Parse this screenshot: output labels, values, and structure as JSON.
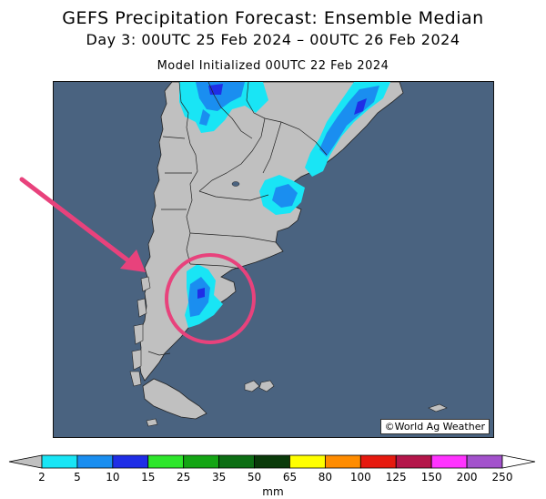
{
  "title": {
    "line1": "GEFS Precipitation Forecast: Ensemble Median",
    "line2": "Day 3: 00UTC 25 Feb 2024 – 00UTC 26 Feb 2024",
    "line3": "Model Initialized 00UTC 22 Feb 2024"
  },
  "copyright": "©World Ag Weather",
  "colors": {
    "ocean": "#4a6380",
    "land": "#c0c0c0",
    "annotation": "#e8427c"
  },
  "legend": {
    "unit": "mm",
    "ticks": [
      "2",
      "5",
      "10",
      "15",
      "25",
      "35",
      "50",
      "65",
      "80",
      "100",
      "125",
      "150",
      "200",
      "250"
    ],
    "bins": [
      {
        "from": "2",
        "to": "5",
        "color": "#19e5f5"
      },
      {
        "from": "5",
        "to": "10",
        "color": "#1a8ef0"
      },
      {
        "from": "10",
        "to": "15",
        "color": "#1f2ee6"
      },
      {
        "from": "15",
        "to": "25",
        "color": "#2ee62b"
      },
      {
        "from": "25",
        "to": "35",
        "color": "#14a514"
      },
      {
        "from": "35",
        "to": "50",
        "color": "#0d6e14"
      },
      {
        "from": "50",
        "to": "65",
        "color": "#0a3a0a"
      },
      {
        "from": "65",
        "to": "80",
        "color": "#ffff00"
      },
      {
        "from": "80",
        "to": "100",
        "color": "#ff8c00"
      },
      {
        "from": "100",
        "to": "125",
        "color": "#e61a0f"
      },
      {
        "from": "125",
        "to": "150",
        "color": "#b4164a"
      },
      {
        "from": "150",
        "to": "200",
        "color": "#ff33ff"
      },
      {
        "from": "200",
        "to": "250",
        "color": "#a352cc"
      }
    ],
    "below_color": "#c0c0c0",
    "above_color": "#ffffff"
  }
}
